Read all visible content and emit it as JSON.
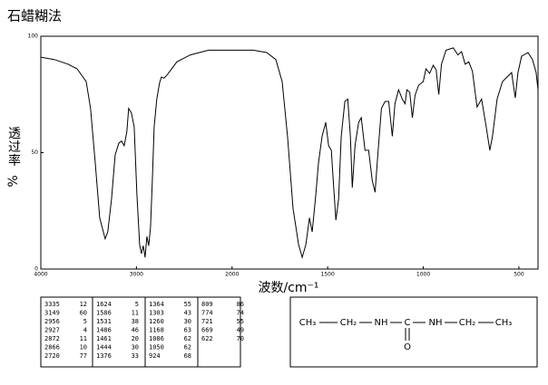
{
  "chart_data": {
    "type": "line",
    "title": "石蜡糊法",
    "ylabel_text": "透过率",
    "ylabel_unit": "%",
    "xlabel": "波数/cm⁻¹",
    "color": "#000000",
    "xlim": [
      4000,
      400
    ],
    "ylim": [
      0,
      100
    ],
    "xticks": [
      4000,
      3000,
      2000,
      1500,
      1000,
      500
    ],
    "yticks": [
      0,
      50,
      100
    ],
    "x": [
      4000,
      3860,
      3716,
      3620,
      3526,
      3480,
      3431,
      3384,
      3327,
      3300,
      3261,
      3223,
      3185,
      3156,
      3128,
      3100,
      3081,
      3052,
      3024,
      2995,
      2967,
      2948,
      2929,
      2910,
      2891,
      2872,
      2853,
      2834,
      2815,
      2787,
      2758,
      2739,
      2711,
      2673,
      2578,
      2436,
      2246,
      2000,
      1890,
      1819,
      1771,
      1738,
      1710,
      1681,
      1652,
      1633,
      1614,
      1595,
      1581,
      1562,
      1548,
      1529,
      1510,
      1495,
      1481,
      1471,
      1457,
      1443,
      1429,
      1410,
      1395,
      1381,
      1371,
      1357,
      1338,
      1324,
      1305,
      1286,
      1267,
      1252,
      1238,
      1219,
      1200,
      1181,
      1162,
      1148,
      1129,
      1110,
      1095,
      1086,
      1071,
      1057,
      1043,
      1024,
      1000,
      986,
      967,
      948,
      933,
      919,
      905,
      881,
      843,
      819,
      800,
      781,
      762,
      743,
      719,
      695,
      671,
      652,
      638,
      614,
      586,
      562,
      538,
      519,
      505,
      486,
      452,
      429,
      410,
      400
    ],
    "values": [
      91,
      90,
      88,
      86,
      80.5,
      69,
      45.5,
      22,
      13,
      16,
      30,
      49,
      54,
      55,
      53,
      59,
      69,
      67,
      61,
      32,
      10.5,
      6.6,
      10,
      5,
      14,
      10,
      18,
      38,
      61,
      73,
      80,
      82.5,
      82,
      83.7,
      89,
      92,
      94,
      94,
      94,
      93,
      90,
      80.5,
      57,
      26,
      10.5,
      5,
      10.5,
      22,
      16,
      32,
      45.5,
      57,
      63,
      53,
      51,
      38,
      21,
      30,
      57,
      72,
      73,
      57,
      35,
      53,
      63,
      65,
      51,
      51,
      38,
      33,
      49,
      69,
      72,
      72,
      57,
      71,
      77,
      73,
      71,
      77,
      76,
      65,
      74.7,
      79,
      80.5,
      86,
      84,
      87.5,
      85.6,
      75,
      88,
      94,
      95,
      92,
      93.4,
      88,
      89,
      85,
      69.6,
      73,
      61,
      51,
      57,
      73,
      80.5,
      82.5,
      84.4,
      73.5,
      84.4,
      91.4,
      93,
      90,
      84.4,
      77
    ]
  },
  "peak_table": {
    "columns": [
      [
        [
          3335,
          12
        ],
        [
          3149,
          60
        ],
        [
          2956,
          5
        ],
        [
          2927,
          4
        ],
        [
          2872,
          11
        ],
        [
          2866,
          10
        ],
        [
          2720,
          77
        ]
      ],
      [
        [
          1624,
          5
        ],
        [
          1586,
          11
        ],
        [
          1531,
          38
        ],
        [
          1486,
          46
        ],
        [
          1461,
          20
        ],
        [
          1444,
          30
        ],
        [
          1376,
          33
        ]
      ],
      [
        [
          1364,
          55
        ],
        [
          1303,
          43
        ],
        [
          1260,
          30
        ],
        [
          1168,
          63
        ],
        [
          1086,
          62
        ],
        [
          1050,
          62
        ],
        [
          924,
          68
        ]
      ],
      [
        [
          809,
          86
        ],
        [
          774,
          74
        ],
        [
          721,
          55
        ],
        [
          669,
          49
        ],
        [
          622,
          70
        ]
      ]
    ]
  },
  "structure": {
    "groups": [
      "CH₃",
      "CH₂",
      "NH",
      "C",
      "NH",
      "CH₂",
      "CH₃"
    ],
    "oxygen": "O"
  }
}
